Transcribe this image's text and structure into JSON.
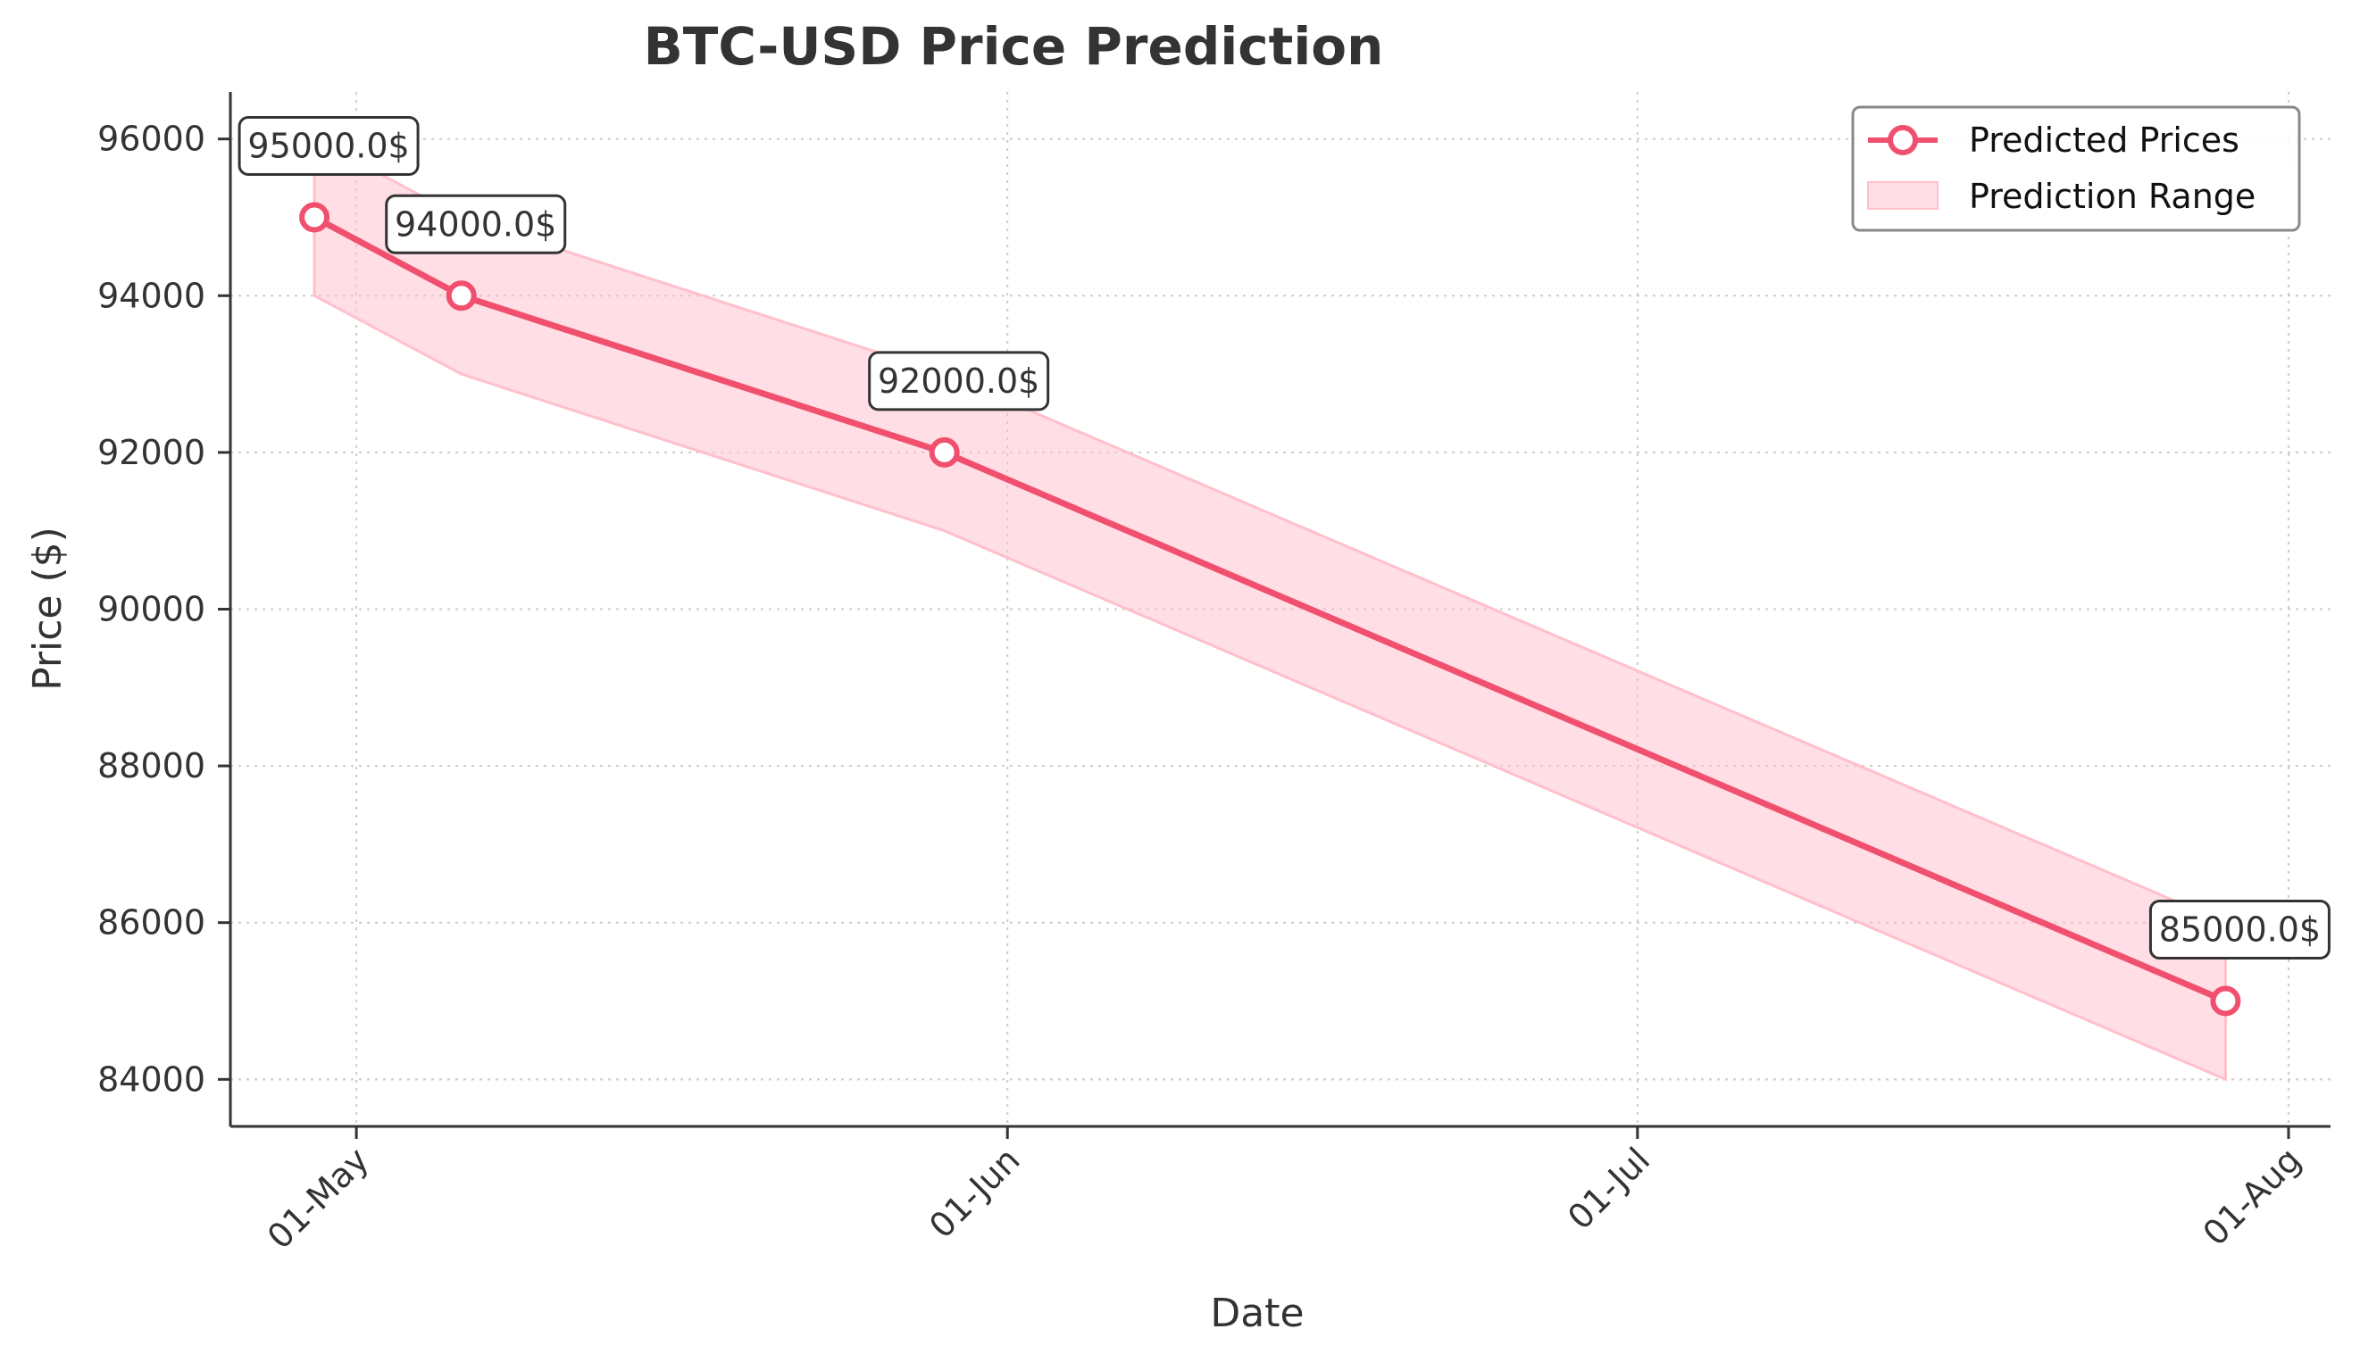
{
  "chart_data": {
    "type": "line",
    "title": "BTC-USD Price Prediction",
    "xlabel": "Date",
    "ylabel": "Price ($)",
    "x": [
      "2025-04-29",
      "2025-05-06",
      "2025-05-29",
      "2025-07-29"
    ],
    "series": [
      {
        "name": "Predicted Prices",
        "values": [
          95000,
          94000,
          92000,
          85000
        ],
        "color": "#f0506e"
      }
    ],
    "band": {
      "name": "Prediction Range",
      "lower": [
        94000,
        93000,
        91000,
        84000
      ],
      "upper": [
        96000,
        95000,
        93000,
        86000
      ],
      "color": "#ffc0cb"
    },
    "annotations": [
      "95000.0$",
      "94000.0$",
      "92000.0$",
      "85000.0$"
    ],
    "x_ticks": [
      {
        "date": "2025-05-01",
        "label": "01-May"
      },
      {
        "date": "2025-06-01",
        "label": "01-Jun"
      },
      {
        "date": "2025-07-01",
        "label": "01-Jul"
      },
      {
        "date": "2025-08-01",
        "label": "01-Aug"
      }
    ],
    "y_ticks": [
      84000,
      86000,
      88000,
      90000,
      92000,
      94000,
      96000
    ],
    "xlim": [
      "2025-04-25",
      "2025-08-03"
    ],
    "ylim": [
      83400,
      96600
    ],
    "grid": true,
    "legend_position": "top-right"
  }
}
